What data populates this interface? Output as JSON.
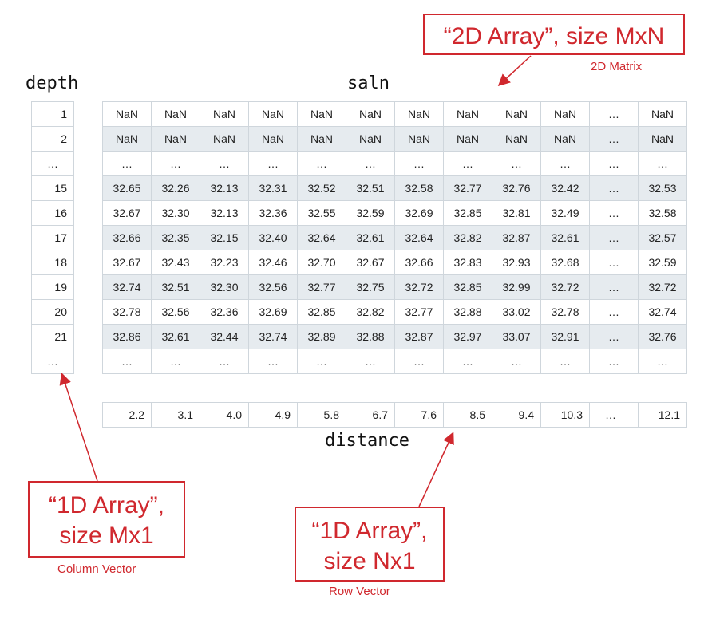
{
  "labels": {
    "depth": "depth",
    "saln": "saln",
    "distance": "distance"
  },
  "depth_values": [
    "1",
    "2",
    "…",
    "15",
    "16",
    "17",
    "18",
    "19",
    "20",
    "21",
    "…"
  ],
  "matrix_rows": [
    [
      "NaN",
      "NaN",
      "NaN",
      "NaN",
      "NaN",
      "NaN",
      "NaN",
      "NaN",
      "NaN",
      "NaN",
      "…",
      "NaN"
    ],
    [
      "NaN",
      "NaN",
      "NaN",
      "NaN",
      "NaN",
      "NaN",
      "NaN",
      "NaN",
      "NaN",
      "NaN",
      "…",
      "NaN"
    ],
    [
      "…",
      "…",
      "…",
      "…",
      "…",
      "…",
      "…",
      "…",
      "…",
      "…",
      "…",
      "…"
    ],
    [
      "32.65",
      "32.26",
      "32.13",
      "32.31",
      "32.52",
      "32.51",
      "32.58",
      "32.77",
      "32.76",
      "32.42",
      "…",
      "32.53"
    ],
    [
      "32.67",
      "32.30",
      "32.13",
      "32.36",
      "32.55",
      "32.59",
      "32.69",
      "32.85",
      "32.81",
      "32.49",
      "…",
      "32.58"
    ],
    [
      "32.66",
      "32.35",
      "32.15",
      "32.40",
      "32.64",
      "32.61",
      "32.64",
      "32.82",
      "32.87",
      "32.61",
      "…",
      "32.57"
    ],
    [
      "32.67",
      "32.43",
      "32.23",
      "32.46",
      "32.70",
      "32.67",
      "32.66",
      "32.83",
      "32.93",
      "32.68",
      "…",
      "32.59"
    ],
    [
      "32.74",
      "32.51",
      "32.30",
      "32.56",
      "32.77",
      "32.75",
      "32.72",
      "32.85",
      "32.99",
      "32.72",
      "…",
      "32.72"
    ],
    [
      "32.78",
      "32.56",
      "32.36",
      "32.69",
      "32.85",
      "32.82",
      "32.77",
      "32.88",
      "33.02",
      "32.78",
      "…",
      "32.74"
    ],
    [
      "32.86",
      "32.61",
      "32.44",
      "32.74",
      "32.89",
      "32.88",
      "32.87",
      "32.97",
      "33.07",
      "32.91",
      "…",
      "32.76"
    ],
    [
      "…",
      "…",
      "…",
      "…",
      "…",
      "…",
      "…",
      "…",
      "…",
      "…",
      "…",
      "…"
    ]
  ],
  "distance_values": [
    "2.2",
    "3.1",
    "4.0",
    "4.9",
    "5.8",
    "6.7",
    "7.6",
    "8.5",
    "9.4",
    "10.3",
    "…",
    "12.1"
  ],
  "callouts": {
    "matrix": {
      "text": "“2D Array”, size MxN",
      "caption": "2D Matrix"
    },
    "column": {
      "line1": "“1D Array”,",
      "line2": "size Mx1",
      "caption": "Column Vector"
    },
    "row": {
      "line1": "“1D Array”,",
      "line2": "size Nx1",
      "caption": "Row Vector"
    }
  },
  "colors": {
    "accent": "#d0282e",
    "stripe": "#e6ebef",
    "grid": "#cfd6dc"
  }
}
